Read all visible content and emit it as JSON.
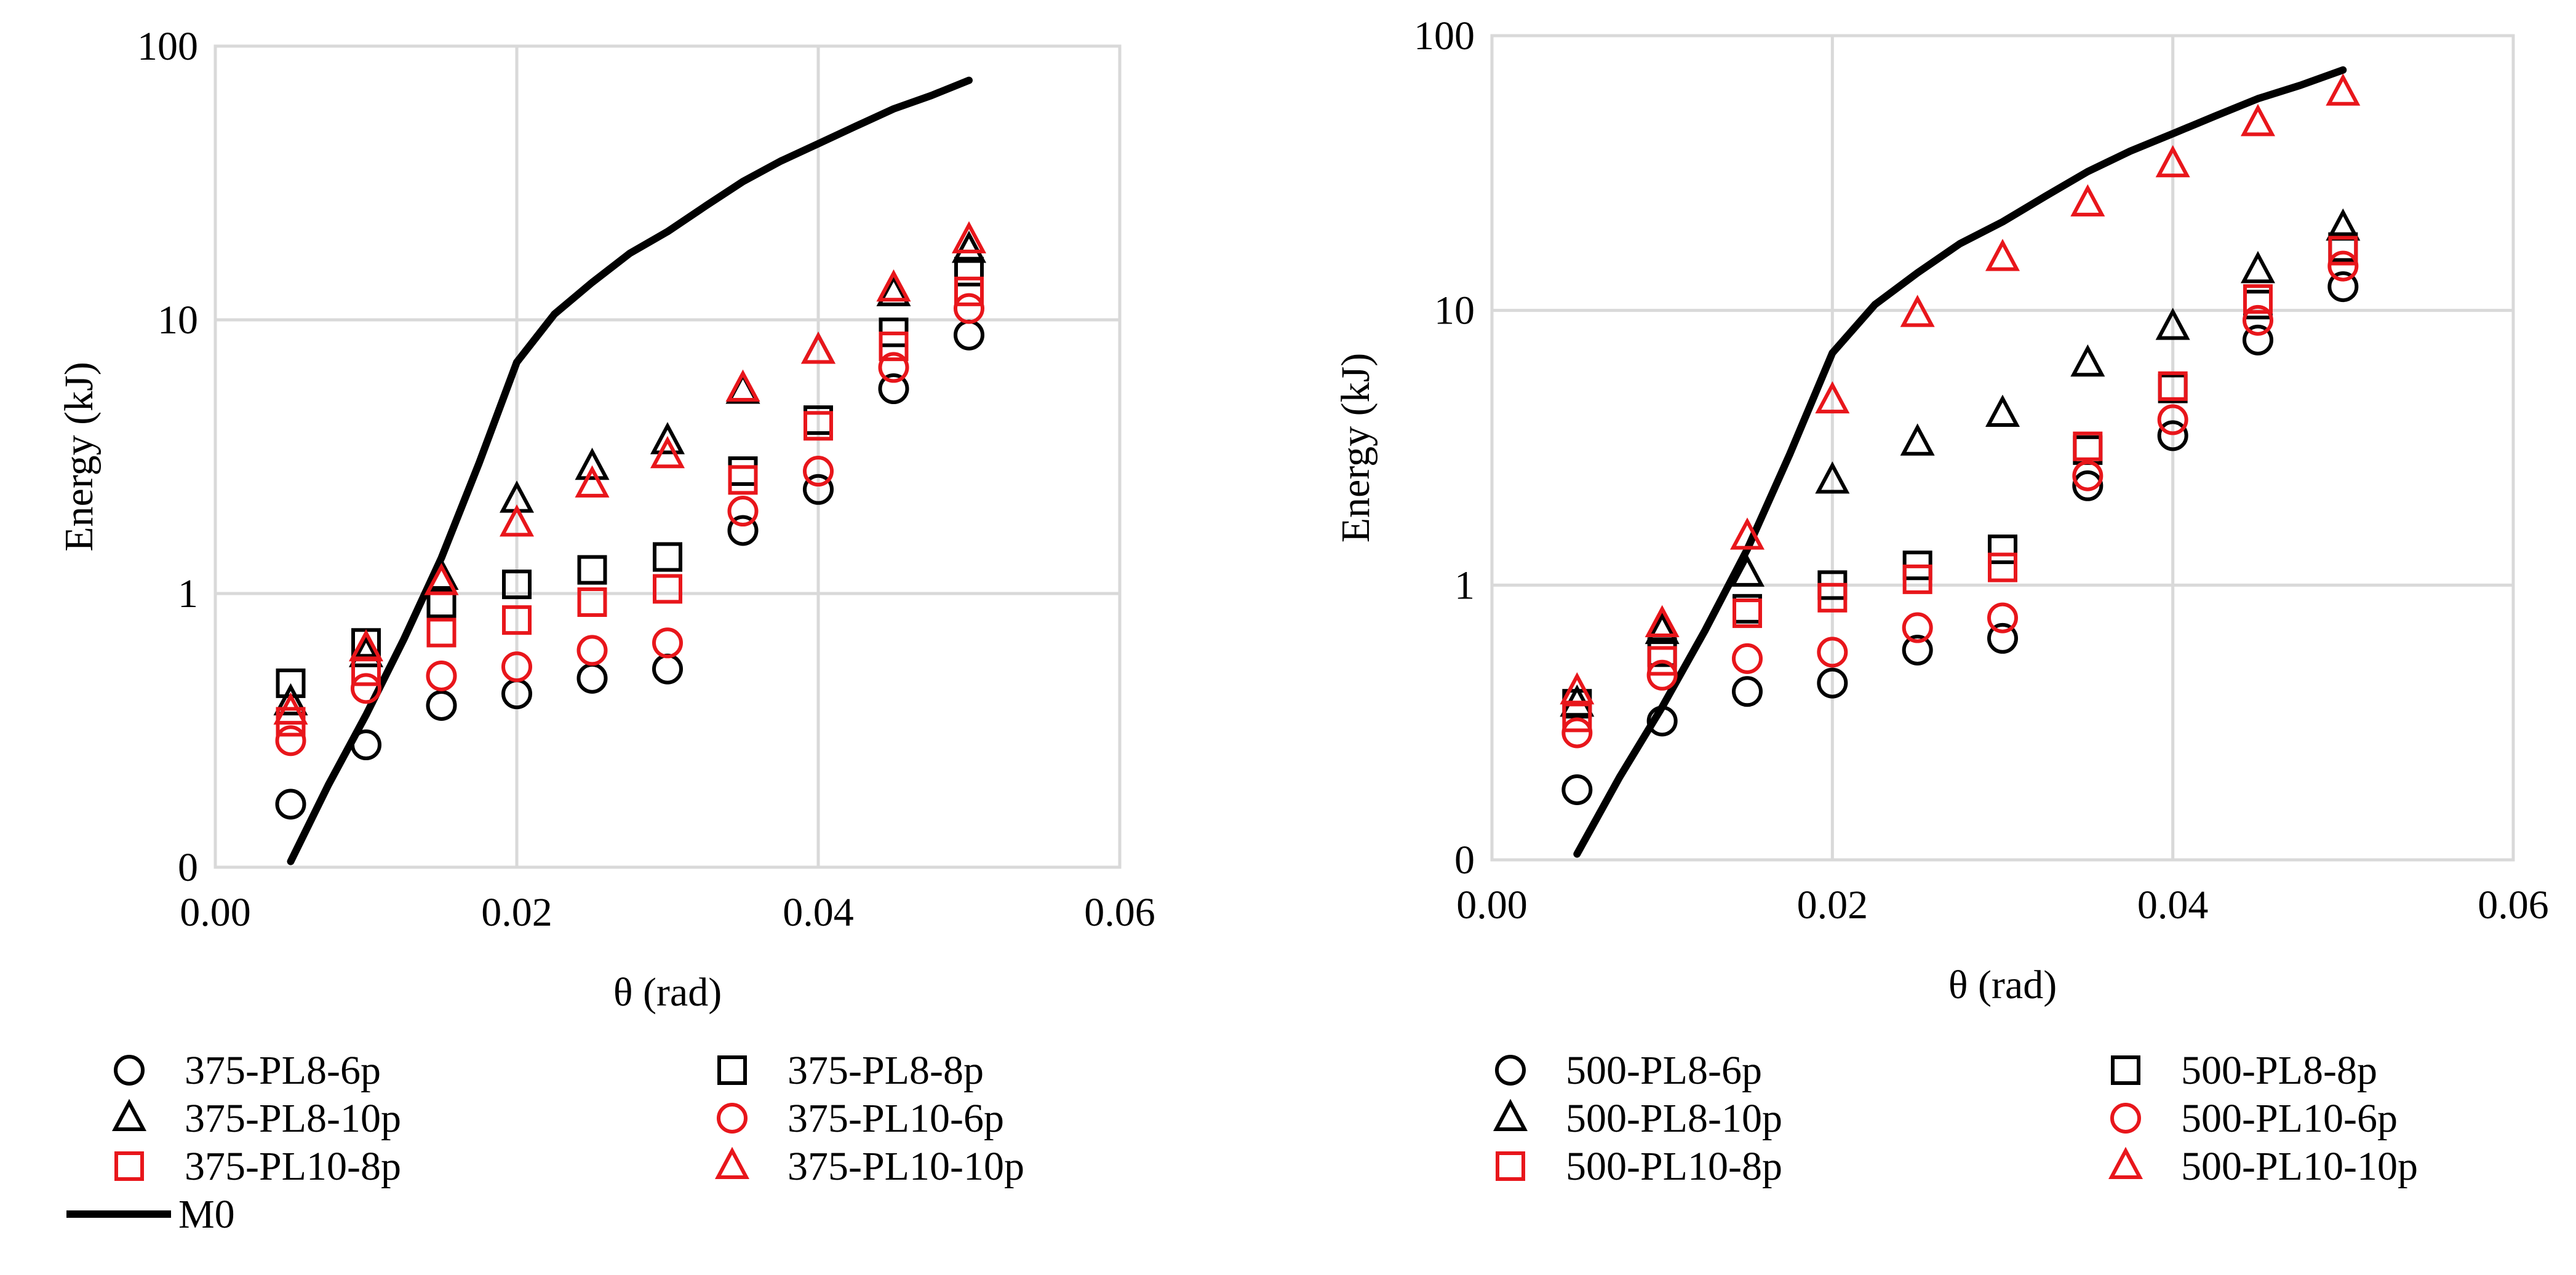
{
  "chart_data": [
    {
      "type": "scatter",
      "yscale": "log",
      "xlabel": "θ (rad)",
      "ylabel": "Energy (kJ)",
      "xlim": [
        0,
        0.06
      ],
      "ylim": [
        0.1,
        100
      ],
      "xticks": [
        "0.00",
        "0.02",
        "0.04",
        "0.06"
      ],
      "yticks": [
        {
          "value": 0.1,
          "label": "0"
        },
        {
          "value": 1,
          "label": "1"
        },
        {
          "value": 10,
          "label": "10"
        },
        {
          "value": 100,
          "label": "100"
        }
      ],
      "x": [
        0.005,
        0.01,
        0.015,
        0.02,
        0.025,
        0.03,
        0.035,
        0.04,
        0.045,
        0.05
      ],
      "series": [
        {
          "name": "375-PL8-6p",
          "marker": "circle",
          "color": "#000000",
          "values": [
            0.17,
            0.28,
            0.39,
            0.43,
            0.49,
            0.53,
            1.7,
            2.4,
            5.6,
            8.8
          ]
        },
        {
          "name": "375-PL8-8p",
          "marker": "square",
          "color": "#000000",
          "values": [
            0.47,
            0.66,
            0.92,
            1.08,
            1.22,
            1.36,
            2.8,
            4.3,
            9.0,
            15.0
          ]
        },
        {
          "name": "375-PL8-10p",
          "marker": "triangle",
          "color": "#000000",
          "values": [
            0.4,
            0.6,
            1.15,
            2.2,
            2.9,
            3.6,
            5.5,
            7.7,
            12.5,
            18.0
          ]
        },
        {
          "name": "375-PL10-6p",
          "marker": "circle",
          "color": "#E8161B",
          "values": [
            0.29,
            0.45,
            0.5,
            0.54,
            0.62,
            0.66,
            2.0,
            2.8,
            6.7,
            11.0
          ]
        },
        {
          "name": "375-PL10-8p",
          "marker": "square",
          "color": "#E8161B",
          "values": [
            0.34,
            0.52,
            0.72,
            0.8,
            0.93,
            1.04,
            2.6,
            4.1,
            8.0,
            12.7
          ]
        },
        {
          "name": "375-PL10-10p",
          "marker": "triangle",
          "color": "#E8161B",
          "values": [
            0.37,
            0.63,
            1.1,
            1.8,
            2.5,
            3.2,
            5.6,
            7.7,
            13.0,
            19.5
          ]
        }
      ],
      "line": {
        "name": "M0",
        "color": "#000000",
        "x": [
          0.005,
          0.0075,
          0.01,
          0.0125,
          0.015,
          0.0175,
          0.02,
          0.0225,
          0.025,
          0.0275,
          0.03,
          0.0325,
          0.035,
          0.0375,
          0.04,
          0.0425,
          0.045,
          0.0475,
          0.05
        ],
        "values": [
          0.105,
          0.2,
          0.36,
          0.68,
          1.35,
          3.0,
          7.0,
          10.5,
          13.7,
          17.5,
          21.0,
          26.0,
          32.0,
          38.0,
          44.0,
          51.0,
          59.0,
          66.0,
          75.0
        ]
      },
      "gridlines": true,
      "legend": "bottom"
    },
    {
      "type": "scatter",
      "yscale": "log",
      "xlabel": "θ (rad)",
      "ylabel": "Energy (kJ)",
      "xlim": [
        0,
        0.06
      ],
      "ylim": [
        0.1,
        100
      ],
      "xticks": [
        "0.00",
        "0.02",
        "0.04",
        "0.06"
      ],
      "yticks": [
        {
          "value": 0.1,
          "label": "0"
        },
        {
          "value": 1,
          "label": "1"
        },
        {
          "value": 10,
          "label": "10"
        },
        {
          "value": 100,
          "label": "100"
        }
      ],
      "x": [
        0.005,
        0.01,
        0.015,
        0.02,
        0.025,
        0.03,
        0.035,
        0.04,
        0.045,
        0.05
      ],
      "series": [
        {
          "name": "500-PL8-6p",
          "marker": "circle",
          "color": "#000000",
          "values": [
            0.18,
            0.32,
            0.41,
            0.44,
            0.58,
            0.64,
            2.3,
            3.5,
            7.8,
            12.2
          ]
        },
        {
          "name": "500-PL8-8p",
          "marker": "square",
          "color": "#000000",
          "values": [
            0.37,
            0.57,
            0.82,
            1.0,
            1.18,
            1.35,
            3.1,
            5.2,
            10.5,
            17.0
          ]
        },
        {
          "name": "500-PL8-10p",
          "marker": "triangle",
          "color": "#000000",
          "values": [
            0.37,
            0.68,
            1.1,
            2.4,
            3.3,
            4.2,
            6.4,
            8.7,
            14.0,
            20.0
          ]
        },
        {
          "name": "500-PL10-6p",
          "marker": "circle",
          "color": "#E8161B",
          "values": [
            0.29,
            0.47,
            0.54,
            0.57,
            0.7,
            0.76,
            2.5,
            4.0,
            9.2,
            14.5
          ]
        },
        {
          "name": "500-PL10-8p",
          "marker": "square",
          "color": "#E8161B",
          "values": [
            0.33,
            0.53,
            0.79,
            0.9,
            1.05,
            1.16,
            3.2,
            5.3,
            11.0,
            16.5
          ]
        },
        {
          "name": "500-PL10-10p",
          "marker": "triangle",
          "color": "#E8161B",
          "values": [
            0.41,
            0.72,
            1.5,
            4.7,
            9.7,
            15.5,
            24.5,
            34.0,
            48.0,
            62.0
          ]
        }
      ],
      "line": {
        "name": "M0",
        "color": "#000000",
        "x": [
          0.005,
          0.0075,
          0.01,
          0.0125,
          0.015,
          0.0175,
          0.02,
          0.0225,
          0.025,
          0.0275,
          0.03,
          0.0325,
          0.035,
          0.0375,
          0.04,
          0.0425,
          0.045,
          0.0475,
          0.05
        ],
        "values": [
          0.105,
          0.2,
          0.36,
          0.68,
          1.35,
          3.0,
          7.0,
          10.5,
          13.7,
          17.5,
          21.0,
          26.0,
          32.0,
          38.0,
          44.0,
          51.0,
          59.0,
          66.0,
          75.0
        ]
      },
      "gridlines": true,
      "legend": "bottom"
    }
  ]
}
